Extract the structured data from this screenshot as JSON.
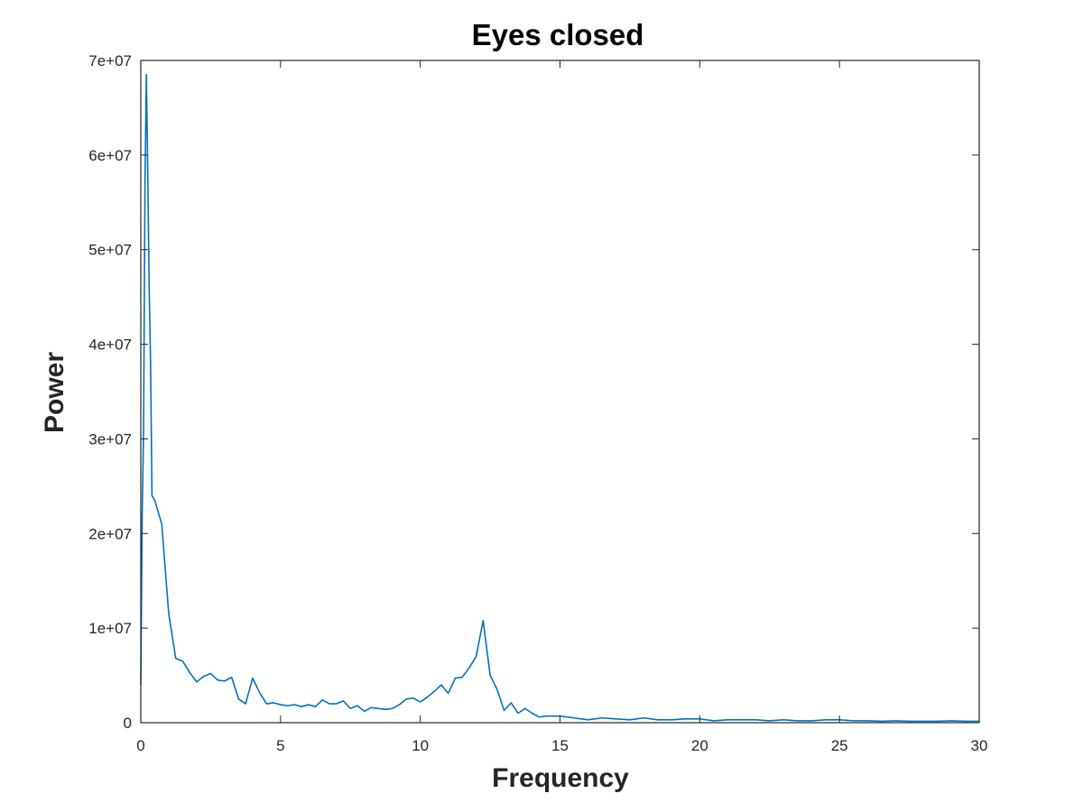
{
  "chart_data": {
    "type": "line",
    "title": "Eyes closed",
    "xlabel": "Frequency",
    "ylabel": "Power",
    "xlim": [
      0,
      30
    ],
    "ylim": [
      0,
      70000000
    ],
    "x_ticks": [
      0,
      5,
      10,
      15,
      20,
      25,
      30
    ],
    "x_tick_labels": [
      "0",
      "5",
      "10",
      "15",
      "20",
      "25",
      "30"
    ],
    "y_ticks": [
      0,
      10000000,
      20000000,
      30000000,
      40000000,
      50000000,
      60000000,
      70000000
    ],
    "y_tick_labels": [
      "0",
      "1e+07",
      "2e+07",
      "3e+07",
      "4e+07",
      "5e+07",
      "6e+07",
      "7e+07"
    ],
    "grid": false,
    "line_color": "#0072bd",
    "series": [
      {
        "x": [
          0.0,
          0.05,
          0.1,
          0.15,
          0.2,
          0.25,
          0.3,
          0.35,
          0.4,
          0.5,
          0.75,
          1.0,
          1.25,
          1.5,
          1.75,
          2.0,
          2.25,
          2.5,
          2.75,
          3.0,
          3.25,
          3.5,
          3.75,
          4.0,
          4.25,
          4.5,
          4.75,
          5.0,
          5.25,
          5.5,
          5.75,
          6.0,
          6.25,
          6.5,
          6.75,
          7.0,
          7.25,
          7.5,
          7.75,
          8.0,
          8.25,
          8.5,
          8.75,
          9.0,
          9.25,
          9.5,
          9.75,
          10.0,
          10.25,
          10.5,
          10.75,
          11.0,
          11.25,
          11.5,
          11.75,
          12.0,
          12.25,
          12.5,
          12.75,
          13.0,
          13.25,
          13.5,
          13.75,
          14.0,
          14.25,
          14.5,
          14.75,
          15.0,
          15.5,
          16.0,
          16.5,
          17.0,
          17.5,
          18.0,
          18.5,
          19.0,
          19.5,
          20.0,
          20.5,
          21.0,
          21.5,
          22.0,
          22.5,
          23.0,
          23.5,
          24.0,
          24.5,
          25.0,
          25.5,
          26.0,
          26.5,
          27.0,
          27.5,
          28.0,
          28.5,
          29.0,
          29.5,
          30.0
        ],
        "y": [
          4000000,
          22000000,
          31000000,
          57000000,
          68500000,
          58000000,
          46000000,
          38000000,
          24000000,
          23500000,
          21000000,
          11500000,
          6800000,
          6500000,
          5300000,
          4300000,
          4900000,
          5200000,
          4500000,
          4400000,
          4800000,
          2500000,
          2000000,
          4700000,
          3200000,
          2000000,
          2100000,
          1900000,
          1800000,
          1900000,
          1700000,
          1900000,
          1700000,
          2400000,
          2000000,
          2000000,
          2300000,
          1500000,
          1800000,
          1200000,
          1600000,
          1500000,
          1400000,
          1500000,
          1900000,
          2500000,
          2600000,
          2200000,
          2700000,
          3300000,
          4000000,
          3100000,
          4700000,
          4800000,
          5800000,
          7000000,
          10800000,
          5000000,
          3500000,
          1300000,
          2100000,
          1000000,
          1500000,
          1000000,
          600000,
          700000,
          700000,
          700000,
          500000,
          300000,
          500000,
          400000,
          300000,
          500000,
          300000,
          300000,
          400000,
          400000,
          200000,
          300000,
          300000,
          300000,
          200000,
          300000,
          200000,
          200000,
          300000,
          300000,
          200000,
          200000,
          150000,
          200000,
          150000,
          150000,
          150000,
          200000,
          150000,
          150000
        ]
      }
    ]
  }
}
